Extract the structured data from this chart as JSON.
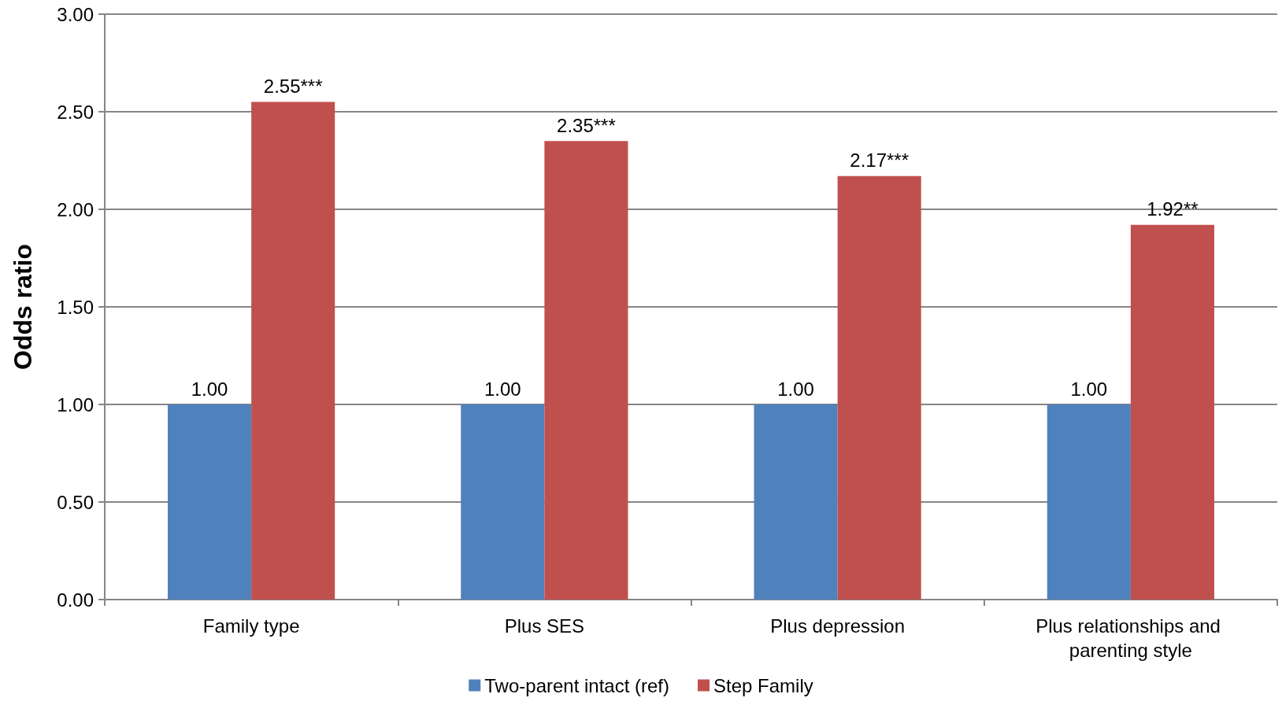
{
  "chart_data": {
    "type": "bar",
    "ylabel": "Odds ratio",
    "categories": [
      "Family type",
      "Plus SES",
      "Plus depression",
      "Plus relationships and parenting style"
    ],
    "series": [
      {
        "name": "Two-parent intact (ref)",
        "color": "#4f81bd",
        "values": [
          1.0,
          1.0,
          1.0,
          1.0
        ],
        "value_labels": [
          "1.00",
          "1.00",
          "1.00",
          "1.00"
        ]
      },
      {
        "name": "Step Family",
        "color": "#c0504d",
        "values": [
          2.55,
          2.35,
          2.17,
          1.92
        ],
        "value_labels": [
          "2.55***",
          "2.35***",
          "2.17***",
          "1.92**"
        ]
      }
    ],
    "ylim": [
      0,
      3
    ],
    "yticks": [
      {
        "value": 0,
        "label": "0.00"
      },
      {
        "value": 0.5,
        "label": "0.50"
      },
      {
        "value": 1,
        "label": "1.00"
      },
      {
        "value": 1.5,
        "label": "1.50"
      },
      {
        "value": 2,
        "label": "2.00"
      },
      {
        "value": 2.5,
        "label": "2.50"
      },
      {
        "value": 3,
        "label": "3.00"
      }
    ],
    "grid": "y",
    "legend": "bottom"
  }
}
